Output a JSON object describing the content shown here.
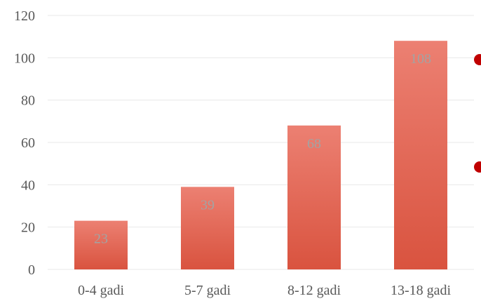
{
  "chart_data": {
    "type": "bar",
    "categories": [
      "0-4 gadi",
      "5-7 gadi",
      "8-12 gadi",
      "13-18 gadi"
    ],
    "values": [
      23,
      39,
      68,
      108
    ],
    "data_labels": [
      "23",
      "39",
      "68",
      "108"
    ],
    "y_ticks": [
      "0",
      "20",
      "40",
      "60",
      "80",
      "100",
      "120"
    ],
    "ylim": [
      0,
      120
    ],
    "title": "",
    "xlabel": "",
    "ylabel": "",
    "grid": true,
    "legend": "none",
    "colors": {
      "bar_top": "#ec8072",
      "bar_bottom": "#d9533f",
      "grid": "#e8e8e8",
      "marker": "#c00000"
    }
  }
}
